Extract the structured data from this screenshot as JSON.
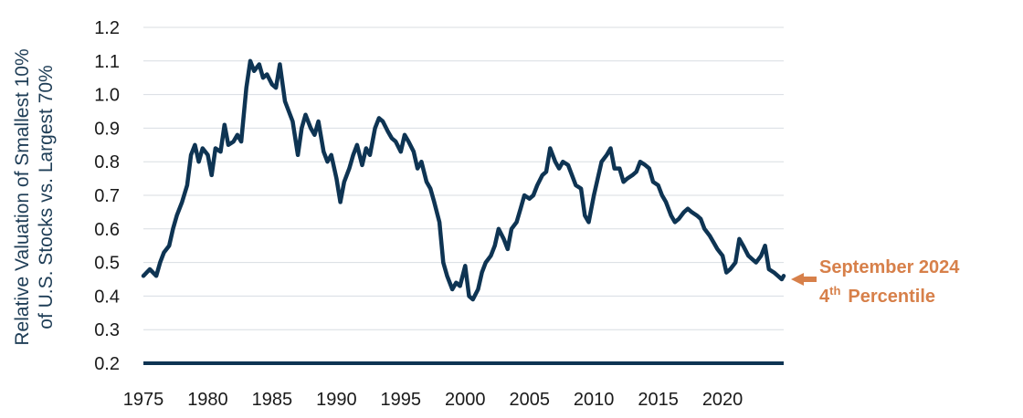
{
  "chart_data": {
    "type": "line",
    "ylabel_lines": [
      "Relative Valuation of Smallest 10%",
      "of U.S. Stocks vs. Largest 70%"
    ],
    "ylim": [
      0.2,
      1.2
    ],
    "yticks": [
      "0.2",
      "0.3",
      "0.4",
      "0.5",
      "0.6",
      "0.7",
      "0.8",
      "0.9",
      "1.0",
      "1.1",
      "1.2"
    ],
    "xlim": [
      1975,
      2024.75
    ],
    "xticks": [
      "1975",
      "1980",
      "1985",
      "1990",
      "1995",
      "2000",
      "2005",
      "2010",
      "2015",
      "2020"
    ],
    "grid": "horizontal",
    "colors": {
      "line": "#0e3453",
      "grid": "#d8dde2",
      "axis": "#0e3453",
      "annotation": "#d7804a"
    },
    "series": [
      {
        "x": [
          1975,
          1975.5,
          1976,
          1976.3,
          1976.6,
          1977,
          1977.3,
          1977.6,
          1978,
          1978.4,
          1978.7,
          1979,
          1979.3,
          1979.6,
          1980,
          1980.3,
          1980.6,
          1981,
          1981.3,
          1981.6,
          1982,
          1982.3,
          1982.6,
          1983,
          1983.3,
          1983.6,
          1984,
          1984.3,
          1984.6,
          1985,
          1985.3,
          1985.6,
          1986,
          1986.3,
          1986.6,
          1987,
          1987.3,
          1987.6,
          1988,
          1988.3,
          1988.6,
          1989,
          1989.3,
          1989.6,
          1990,
          1990.3,
          1990.6,
          1991,
          1991.3,
          1991.6,
          1992,
          1992.3,
          1992.6,
          1993,
          1993.3,
          1993.6,
          1994,
          1994.3,
          1994.6,
          1995,
          1995.3,
          1995.6,
          1996,
          1996.3,
          1996.6,
          1997,
          1997.3,
          1997.6,
          1998,
          1998.3,
          1998.6,
          1999,
          1999.3,
          1999.6,
          2000,
          2000.3,
          2000.6,
          2001,
          2001.3,
          2001.6,
          2002,
          2002.3,
          2002.6,
          2003,
          2003.3,
          2003.6,
          2004,
          2004.3,
          2004.6,
          2005,
          2005.3,
          2005.6,
          2006,
          2006.3,
          2006.6,
          2007,
          2007.3,
          2007.6,
          2008,
          2008.3,
          2008.6,
          2009,
          2009.3,
          2009.6,
          2010,
          2010.3,
          2010.6,
          2011,
          2011.3,
          2011.6,
          2012,
          2012.3,
          2012.6,
          2013,
          2013.3,
          2013.6,
          2014,
          2014.3,
          2014.6,
          2015,
          2015.3,
          2015.6,
          2016,
          2016.3,
          2016.6,
          2017,
          2017.3,
          2017.6,
          2018,
          2018.3,
          2018.6,
          2019,
          2019.3,
          2019.6,
          2020,
          2020.3,
          2020.6,
          2021,
          2021.3,
          2021.6,
          2022,
          2022.3,
          2022.6,
          2023,
          2023.3,
          2023.6,
          2024,
          2024.3,
          2024.6,
          2024.75
        ],
        "y": [
          0.46,
          0.48,
          0.46,
          0.5,
          0.53,
          0.55,
          0.6,
          0.64,
          0.68,
          0.73,
          0.82,
          0.85,
          0.8,
          0.84,
          0.82,
          0.76,
          0.84,
          0.83,
          0.91,
          0.85,
          0.86,
          0.88,
          0.86,
          1.02,
          1.1,
          1.07,
          1.09,
          1.05,
          1.06,
          1.03,
          1.02,
          1.09,
          0.98,
          0.95,
          0.92,
          0.82,
          0.9,
          0.94,
          0.9,
          0.88,
          0.92,
          0.83,
          0.8,
          0.82,
          0.75,
          0.68,
          0.74,
          0.78,
          0.82,
          0.85,
          0.79,
          0.84,
          0.82,
          0.9,
          0.93,
          0.92,
          0.89,
          0.87,
          0.86,
          0.83,
          0.88,
          0.86,
          0.83,
          0.78,
          0.8,
          0.74,
          0.72,
          0.68,
          0.62,
          0.5,
          0.46,
          0.42,
          0.44,
          0.43,
          0.49,
          0.4,
          0.39,
          0.42,
          0.47,
          0.5,
          0.52,
          0.55,
          0.6,
          0.57,
          0.54,
          0.6,
          0.62,
          0.66,
          0.7,
          0.69,
          0.7,
          0.73,
          0.76,
          0.77,
          0.84,
          0.8,
          0.78,
          0.8,
          0.79,
          0.76,
          0.73,
          0.72,
          0.64,
          0.62,
          0.7,
          0.75,
          0.8,
          0.82,
          0.84,
          0.78,
          0.78,
          0.74,
          0.75,
          0.76,
          0.77,
          0.8,
          0.79,
          0.78,
          0.74,
          0.73,
          0.7,
          0.68,
          0.64,
          0.62,
          0.63,
          0.65,
          0.66,
          0.65,
          0.64,
          0.63,
          0.6,
          0.58,
          0.56,
          0.54,
          0.52,
          0.47,
          0.48,
          0.5,
          0.57,
          0.55,
          0.52,
          0.51,
          0.5,
          0.52,
          0.55,
          0.48,
          0.47,
          0.46,
          0.45,
          0.46
        ]
      }
    ],
    "annotation": {
      "line1": "September 2024",
      "ord_num": "4",
      "ord_sup": "th",
      "word": "Percentile"
    }
  }
}
